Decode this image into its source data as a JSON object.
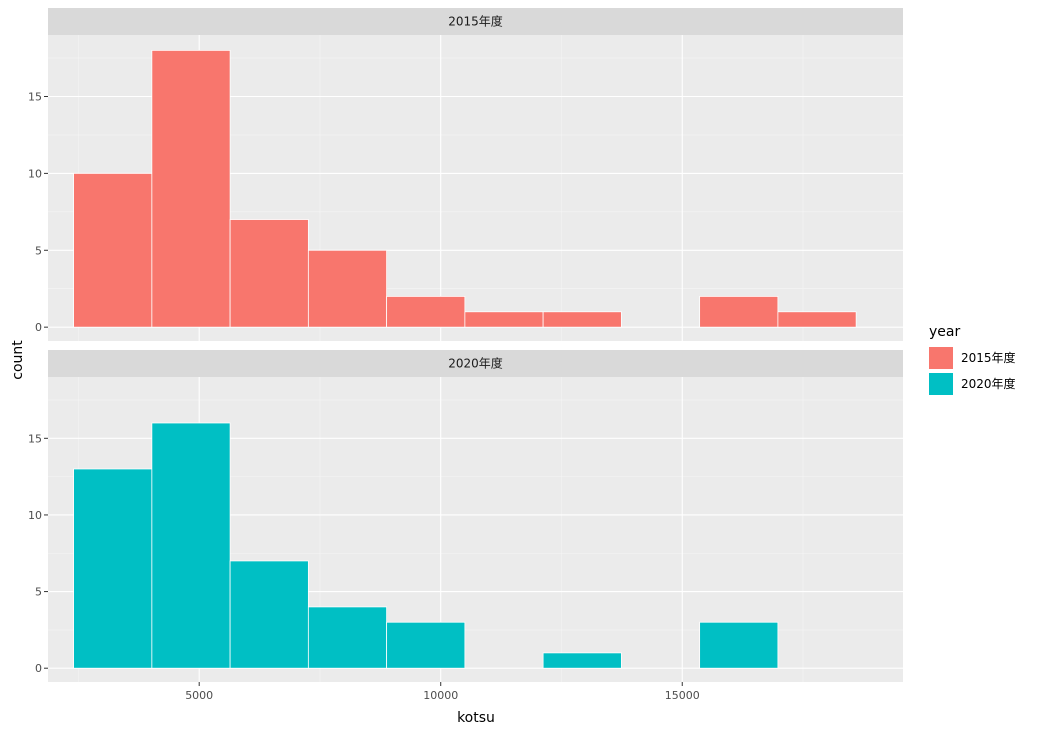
{
  "chart_data": {
    "type": "bar",
    "chart_kind": "faceted histogram",
    "xlabel": "kotsu",
    "ylabel": "count",
    "xlim": [
      1870,
      19570
    ],
    "ylim": [
      -0.9,
      19.0
    ],
    "x_ticks": [
      5000,
      10000,
      15000
    ],
    "x_tick_labels": [
      "5000",
      "10000",
      "15000"
    ],
    "y_ticks": [
      0,
      5,
      10,
      15
    ],
    "y_tick_labels": [
      "0",
      "5",
      "10",
      "15"
    ],
    "bin_width": 1620,
    "bin_edges": [
      2400,
      4020,
      5640,
      7260,
      8880,
      10500,
      12120,
      13740,
      15360,
      16980,
      18600
    ],
    "grid": true,
    "legend": {
      "title": "year",
      "position": "right",
      "entries": [
        {
          "label": "2015年度",
          "color": "#F8766D"
        },
        {
          "label": "2020年度",
          "color": "#00BFC4"
        }
      ]
    },
    "panels": [
      {
        "strip": "2015年度",
        "color": "#F8766D",
        "counts": [
          10,
          18,
          7,
          5,
          2,
          1,
          1,
          0,
          2,
          1
        ]
      },
      {
        "strip": "2020年度",
        "color": "#00BFC4",
        "counts": [
          13,
          16,
          7,
          4,
          3,
          0,
          1,
          0,
          3,
          0
        ]
      }
    ]
  }
}
